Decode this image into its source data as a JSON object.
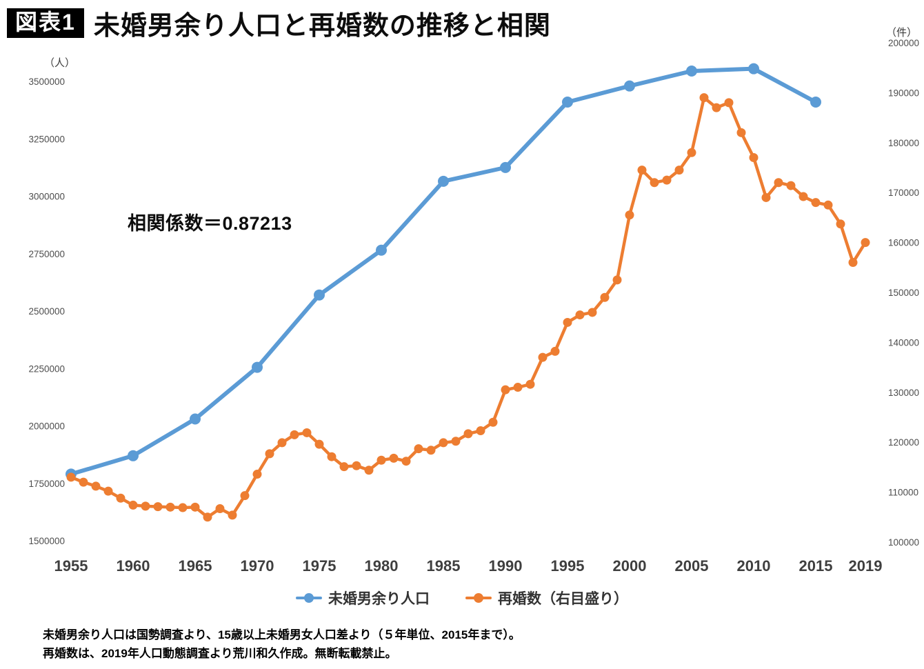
{
  "header": {
    "badge": "図表1",
    "title": "未婚男余り人口と再婚数の推移と相関"
  },
  "legend": [
    {
      "label": "未婚男余り人口",
      "color": "#5B9BD5"
    },
    {
      "label": "再婚数（右目盛り）",
      "color": "#ED7D31"
    }
  ],
  "footer": {
    "line1": "未婚男余り人口は国勢調査より、15歳以上未婚男女人口差より（５年単位、2015年まで）。",
    "line2": "再婚数は、2019年人口動態調査より荒川和久作成。無断転載禁止。"
  },
  "chart_data": {
    "type": "line",
    "title": "未婚男余り人口と再婚数の推移と相関",
    "annotation": "相関係数＝0.87213",
    "grid": false,
    "legend_position": "bottom",
    "x_ticks": [
      1955,
      1960,
      1965,
      1970,
      1975,
      1980,
      1985,
      1990,
      1995,
      2000,
      2005,
      2010,
      2015,
      2019
    ],
    "left_axis": {
      "unit": "（人）",
      "min": 1500000,
      "max": 3500000,
      "step": 250000
    },
    "right_axis": {
      "unit": "（件）",
      "min": 100000,
      "max": 200000,
      "step": 10000
    },
    "series": [
      {
        "name": "未婚男余り人口",
        "key": "unmarried-men-surplus-line",
        "axis": "left",
        "color": "#5B9BD5",
        "x": [
          1955,
          1960,
          1965,
          1970,
          1975,
          1980,
          1985,
          1990,
          1995,
          2000,
          2005,
          2010,
          2015
        ],
        "values": [
          1790000,
          1870000,
          2030000,
          2255000,
          2570000,
          2765000,
          3065000,
          3125000,
          3410000,
          3480000,
          3545000,
          3555000,
          3410000
        ]
      },
      {
        "name": "再婚数（右目盛り）",
        "key": "remarriage-count-line",
        "axis": "right",
        "color": "#ED7D31",
        "x": [
          1955,
          1956,
          1957,
          1958,
          1959,
          1960,
          1961,
          1962,
          1963,
          1964,
          1965,
          1966,
          1967,
          1968,
          1969,
          1970,
          1971,
          1972,
          1973,
          1974,
          1975,
          1976,
          1977,
          1978,
          1979,
          1980,
          1981,
          1982,
          1983,
          1984,
          1985,
          1986,
          1987,
          1988,
          1989,
          1990,
          1991,
          1992,
          1993,
          1994,
          1995,
          1996,
          1997,
          1998,
          1999,
          2000,
          2001,
          2002,
          2003,
          2004,
          2005,
          2006,
          2007,
          2008,
          2009,
          2010,
          2011,
          2012,
          2013,
          2014,
          2015,
          2016,
          2017,
          2018,
          2019
        ],
        "values": [
          113000,
          112000,
          111200,
          110200,
          108800,
          107400,
          107200,
          107100,
          107000,
          106900,
          107000,
          105000,
          106700,
          105400,
          109300,
          113600,
          117700,
          119900,
          121500,
          121900,
          119600,
          117100,
          115100,
          115300,
          114400,
          116400,
          116800,
          116200,
          118700,
          118400,
          119900,
          120200,
          121700,
          122300,
          124000,
          130500,
          131000,
          131600,
          137000,
          138200,
          144000,
          145500,
          146000,
          149000,
          152500,
          165500,
          174500,
          172000,
          172500,
          174500,
          178000,
          189000,
          187000,
          188000,
          182000,
          177000,
          169000,
          172000,
          171400,
          169200,
          168000,
          167500,
          163700,
          156000,
          160000
        ]
      }
    ]
  }
}
